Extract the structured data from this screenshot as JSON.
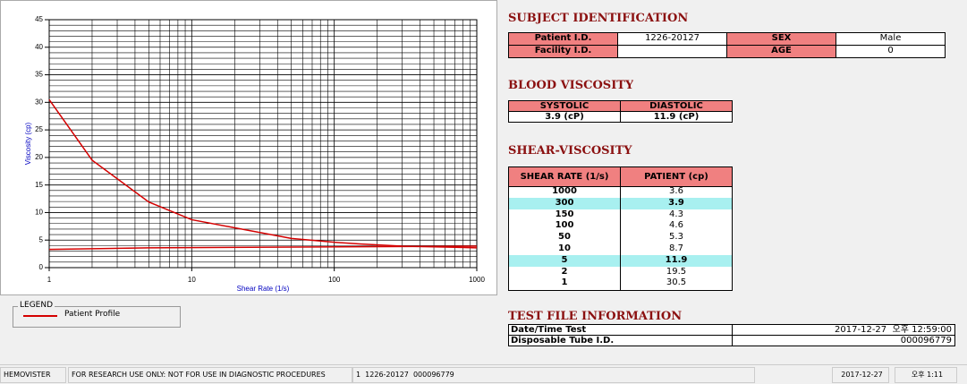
{
  "chart_data": {
    "type": "line",
    "y_label": "Viscosity (cp)",
    "x_label": "Shear Rate (1/s)",
    "log_x": true,
    "grid": true,
    "xlim": [
      1,
      1000
    ],
    "xticks": [
      1,
      10,
      100,
      1000
    ],
    "ylim": [
      0,
      45
    ],
    "yticks": [
      0,
      5,
      10,
      15,
      20,
      25,
      30,
      35,
      40,
      45
    ],
    "series": [
      {
        "name": "Patient Profile",
        "color": "#d40000",
        "x": [
          1,
          2,
          5,
          10,
          50,
          100,
          150,
          300,
          1000
        ],
        "values": [
          30.5,
          19.5,
          11.9,
          8.7,
          5.3,
          4.6,
          4.3,
          3.9,
          3.6
        ]
      },
      {
        "color": "#d40000",
        "x": [
          1,
          5,
          1000
        ],
        "values": [
          3.3,
          3.6,
          3.9
        ]
      }
    ]
  },
  "legend_title": "LEGEND",
  "subject": {
    "title": "SUBJECT IDENTIFICATION",
    "fields": [
      {
        "label": "Patient I.D.",
        "value": "1226-20127"
      },
      {
        "label": "SEX",
        "value": "Male"
      },
      {
        "label": "Facility I.D."
      },
      {
        "label": "AGE",
        "value": "0"
      }
    ]
  },
  "blood_viscosity": {
    "title": "BLOOD VISCOSITY",
    "headers": [
      "SYSTOLIC",
      "DIASTOLIC"
    ],
    "values": [
      "3.9 (cP)",
      "11.9 (cP)"
    ]
  },
  "shear_viscosity": {
    "title": "SHEAR-VISCOSITY",
    "headers": [
      "SHEAR RATE (1/s)",
      "PATIENT (cp)"
    ],
    "highlight_rows": [
      1,
      6
    ],
    "rows": [
      [
        "1000",
        "3.6"
      ],
      [
        "300",
        "3.9"
      ],
      [
        "150",
        "4.3"
      ],
      [
        "100",
        "4.6"
      ],
      [
        "50",
        "5.3"
      ],
      [
        "10",
        "8.7"
      ],
      [
        "5",
        "11.9"
      ],
      [
        "2",
        "19.5"
      ],
      [
        "1",
        "30.5"
      ]
    ]
  },
  "test_file": {
    "title": "TEST FILE INFORMATION",
    "rows": [
      [
        "Date/Time Test",
        "2017-12-27  오후 12:59:00"
      ],
      [
        "Disposable Tube I.D.",
        "000096779"
      ]
    ]
  },
  "status_bar": [
    "HEMOVISTER",
    "FOR RESEARCH USE ONLY: NOT FOR USE IN DIAGNOSTIC PROCEDURES",
    "1  1226-20127  000096779",
    "2017-12-27",
    "오후 1:11"
  ]
}
